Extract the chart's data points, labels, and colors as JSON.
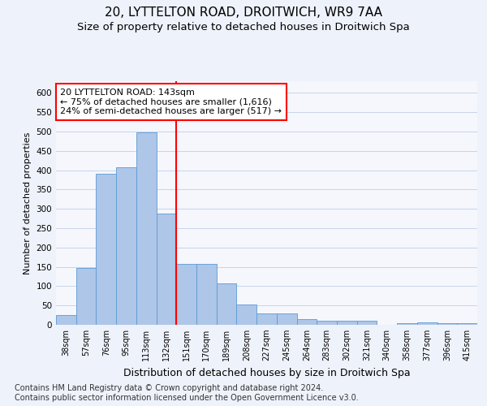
{
  "title": "20, LYTTELTON ROAD, DROITWICH, WR9 7AA",
  "subtitle": "Size of property relative to detached houses in Droitwich Spa",
  "xlabel": "Distribution of detached houses by size in Droitwich Spa",
  "ylabel": "Number of detached properties",
  "categories": [
    "38sqm",
    "57sqm",
    "76sqm",
    "95sqm",
    "113sqm",
    "132sqm",
    "151sqm",
    "170sqm",
    "189sqm",
    "208sqm",
    "227sqm",
    "245sqm",
    "264sqm",
    "283sqm",
    "302sqm",
    "321sqm",
    "340sqm",
    "358sqm",
    "377sqm",
    "396sqm",
    "415sqm"
  ],
  "values": [
    25,
    148,
    390,
    408,
    497,
    287,
    158,
    158,
    108,
    53,
    30,
    30,
    15,
    10,
    10,
    10,
    0,
    5,
    7,
    5,
    5
  ],
  "bar_color": "#aec6e8",
  "bar_edge_color": "#5b9bd5",
  "vline_color": "red",
  "annotation_text": "20 LYTTELTON ROAD: 143sqm\n← 75% of detached houses are smaller (1,616)\n24% of semi-detached houses are larger (517) →",
  "annotation_box_color": "white",
  "annotation_box_edge": "red",
  "ylim": [
    0,
    630
  ],
  "yticks": [
    0,
    50,
    100,
    150,
    200,
    250,
    300,
    350,
    400,
    450,
    500,
    550,
    600
  ],
  "footer": "Contains HM Land Registry data © Crown copyright and database right 2024.\nContains public sector information licensed under the Open Government Licence v3.0.",
  "bg_color": "#eef2fa",
  "plot_bg_color": "#f5f7fd",
  "title_fontsize": 11,
  "subtitle_fontsize": 9.5,
  "annotation_fontsize": 8,
  "footer_fontsize": 7,
  "ylabel_fontsize": 8,
  "xlabel_fontsize": 9
}
